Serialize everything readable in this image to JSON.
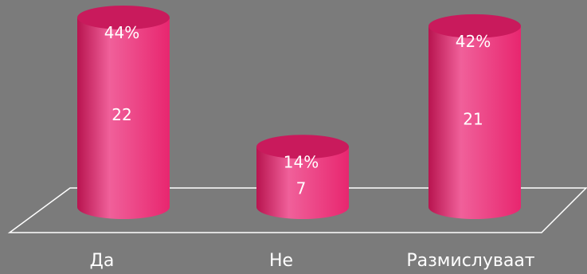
{
  "chart_data": {
    "type": "bar",
    "categories": [
      "Да",
      "Не",
      "Размислуваат"
    ],
    "values": [
      22,
      7,
      21
    ],
    "percent_labels": [
      "44%",
      "14%",
      "42%"
    ],
    "title": "",
    "xlabel": "",
    "ylabel": "",
    "ylim": [
      0,
      22
    ],
    "grid": false,
    "legend": "none"
  },
  "colors": {
    "background": "#7b7b7b",
    "bar_body": "#e8266f",
    "bar_body_light": "#f0609a",
    "bar_body_dark": "#b8144f",
    "bar_top": "#c91a5c",
    "floor_line": "#ffffff",
    "text": "#ffffff"
  }
}
